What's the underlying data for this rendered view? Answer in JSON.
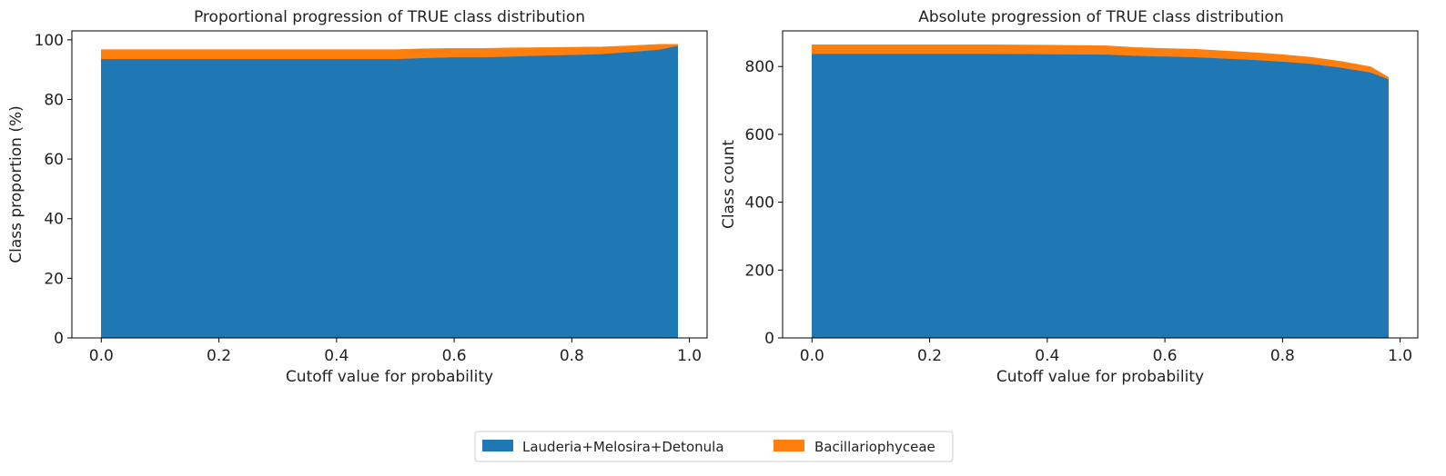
{
  "chart_data": [
    {
      "type": "area",
      "stacked": true,
      "title": "Proportional progression of TRUE class distribution",
      "xlabel": "Cutoff value for probability",
      "ylabel": "Class proportion (%)",
      "xlim": [
        -0.05,
        1.03
      ],
      "ylim": [
        0,
        103
      ],
      "xticks": [
        "0.0",
        "0.2",
        "0.4",
        "0.6",
        "0.8",
        "1.0"
      ],
      "yticks": [
        "0",
        "20",
        "40",
        "60",
        "80",
        "100"
      ],
      "x": [
        0.0,
        0.1,
        0.2,
        0.3,
        0.4,
        0.5,
        0.55,
        0.6,
        0.65,
        0.7,
        0.75,
        0.8,
        0.85,
        0.9,
        0.95,
        0.98
      ],
      "series": [
        {
          "name": "Lauderia+Melosira+Detonula",
          "color": "#1f77b4",
          "values": [
            93.6,
            93.6,
            93.6,
            93.6,
            93.6,
            93.6,
            94.0,
            94.2,
            94.2,
            94.5,
            94.8,
            95.0,
            95.3,
            96.0,
            96.8,
            98.1
          ]
        },
        {
          "name": "Bacillariophyceae",
          "color": "#ff7f0e",
          "values": [
            3.1,
            3.1,
            3.1,
            3.1,
            3.1,
            3.1,
            3.0,
            2.9,
            2.9,
            2.8,
            2.6,
            2.5,
            2.3,
            2.0,
            1.7,
            0.4
          ]
        }
      ],
      "grid": false
    },
    {
      "type": "area",
      "stacked": true,
      "title": "Absolute progression of TRUE class distribution",
      "xlabel": "Cutoff value for probability",
      "ylabel": "Class count",
      "xlim": [
        -0.05,
        1.03
      ],
      "ylim": [
        0,
        905
      ],
      "xticks": [
        "0.0",
        "0.2",
        "0.4",
        "0.6",
        "0.8",
        "1.0"
      ],
      "yticks": [
        "0",
        "200",
        "400",
        "600",
        "800"
      ],
      "x": [
        0.0,
        0.1,
        0.2,
        0.3,
        0.4,
        0.5,
        0.55,
        0.6,
        0.65,
        0.7,
        0.75,
        0.8,
        0.85,
        0.9,
        0.95,
        0.98
      ],
      "series": [
        {
          "name": "Lauderia+Melosira+Detonula",
          "color": "#1f77b4",
          "values": [
            838,
            838,
            838,
            838,
            837,
            836,
            832,
            830,
            828,
            824,
            820,
            815,
            808,
            797,
            783,
            763
          ]
        },
        {
          "name": "Bacillariophyceae",
          "color": "#ff7f0e",
          "values": [
            26,
            26,
            26,
            26,
            26,
            25,
            24,
            23,
            23,
            22,
            21,
            20,
            19,
            18,
            16,
            5
          ]
        }
      ],
      "grid": false
    }
  ],
  "legend": {
    "placement": "bottom-center",
    "entries": [
      {
        "label": "Lauderia+Melosira+Detonula",
        "color": "#1f77b4"
      },
      {
        "label": "Bacillariophyceae",
        "color": "#ff7f0e"
      }
    ]
  }
}
